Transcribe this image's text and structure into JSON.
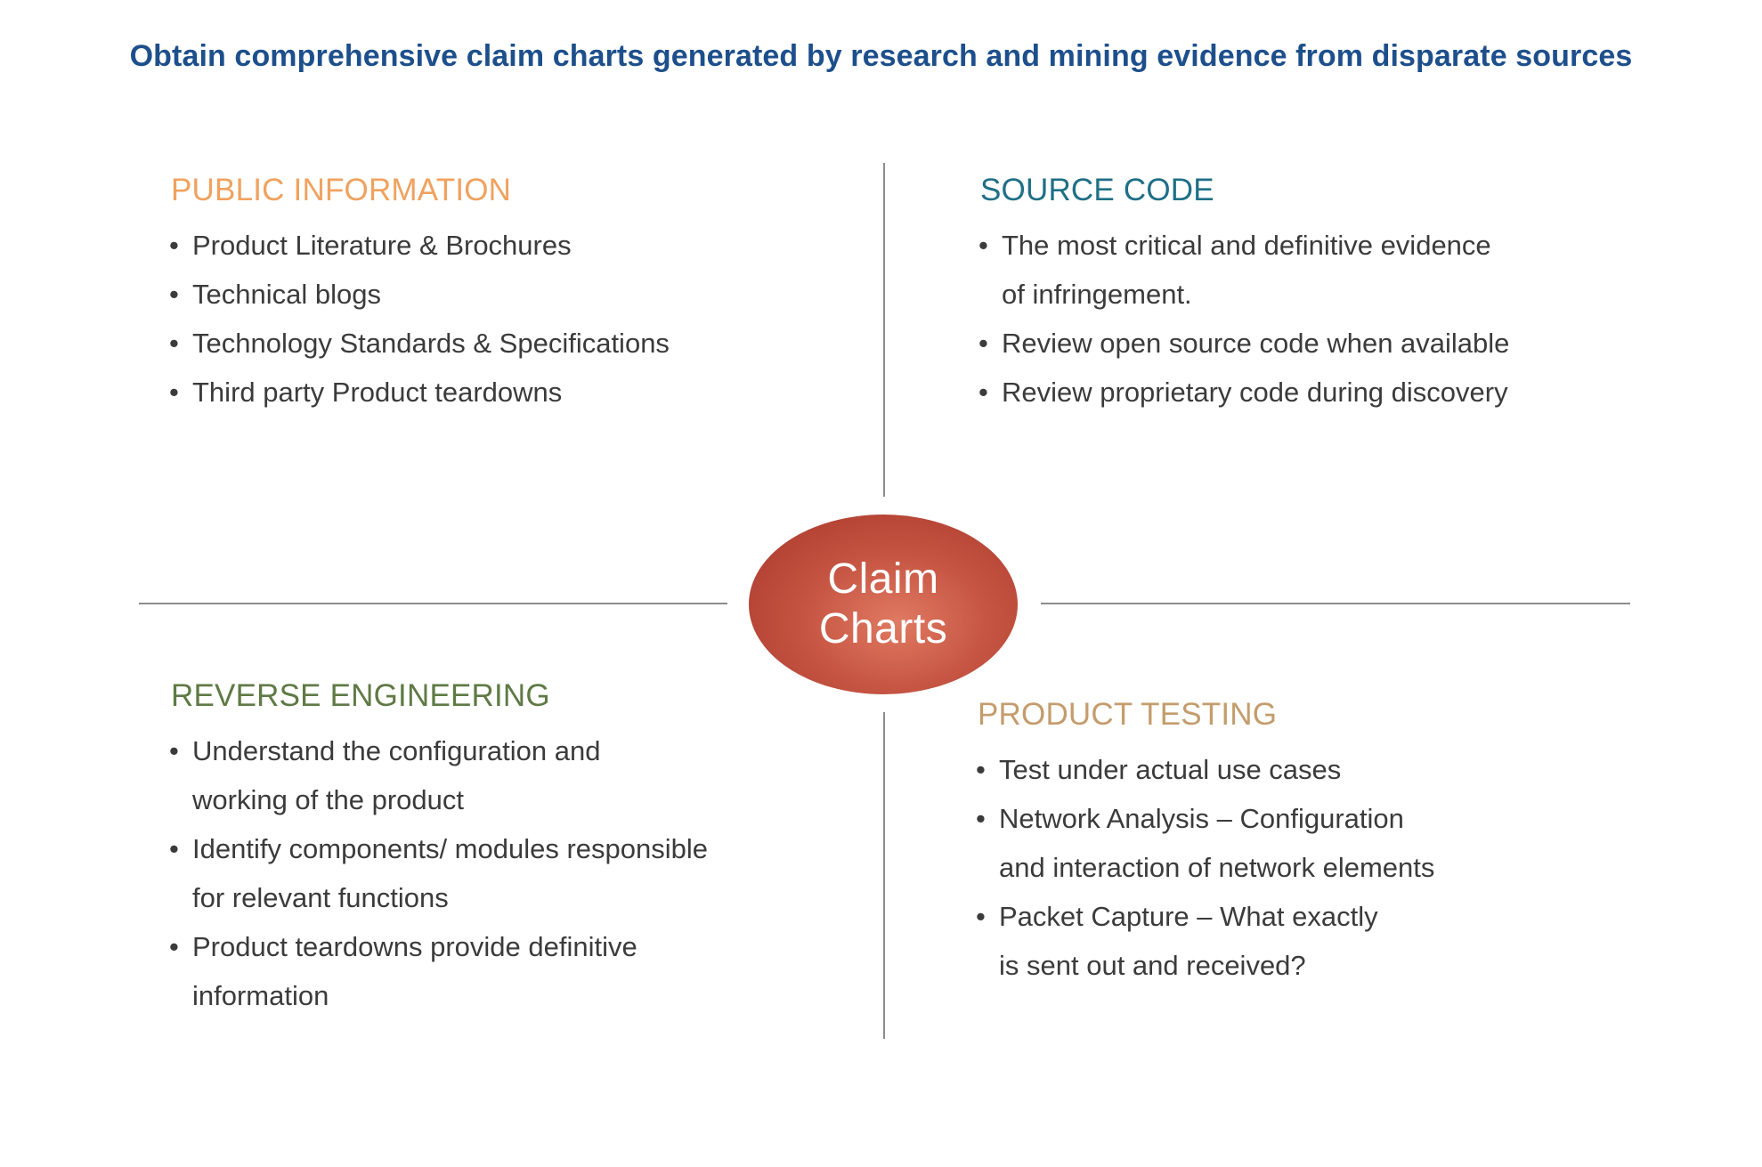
{
  "headline": "Obtain comprehensive claim charts generated by research and mining evidence from disparate sources",
  "center": {
    "line1": "Claim",
    "line2": "Charts",
    "colors": [
      "#e07a62",
      "#c55442",
      "#a6362a"
    ]
  },
  "quadrants": {
    "public_information": {
      "title": "PUBLIC INFORMATION",
      "color": "#f0a25f",
      "items": [
        [
          "Product Literature & Brochures"
        ],
        [
          "Technical blogs"
        ],
        [
          "Technology Standards & Specifications"
        ],
        [
          "Third party Product teardowns"
        ]
      ]
    },
    "source_code": {
      "title": "SOURCE CODE",
      "color": "#1f6f86",
      "items": [
        [
          "The most critical and definitive evidence",
          "of infringement."
        ],
        [
          "Review open source code when available"
        ],
        [
          "Review proprietary code during discovery"
        ]
      ]
    },
    "reverse_engineering": {
      "title": "REVERSE ENGINEERING",
      "color": "#5f7a45",
      "items": [
        [
          "Understand the configuration and",
          "working of the product"
        ],
        [
          "Identify components/ modules responsible",
          "for relevant functions"
        ],
        [
          "Product teardowns provide definitive",
          "information"
        ]
      ]
    },
    "product_testing": {
      "title": "PRODUCT TESTING",
      "color": "#c49c6c",
      "items": [
        [
          "Test under actual use cases"
        ],
        [
          "Network Analysis – Configuration",
          "and interaction of network elements"
        ],
        [
          "Packet Capture – What exactly",
          "is sent out and received?"
        ]
      ]
    }
  }
}
